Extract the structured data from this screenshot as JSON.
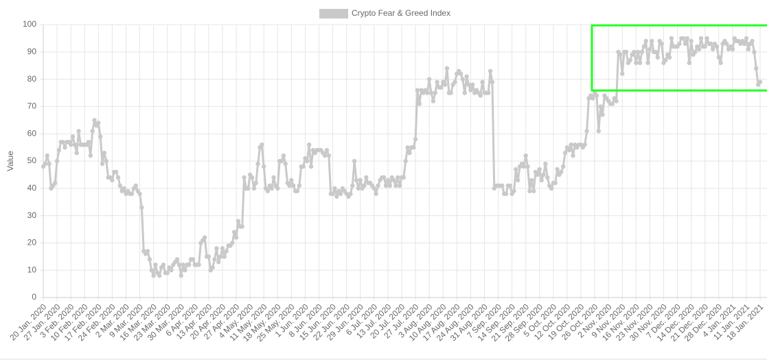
{
  "chart_data": {
    "type": "line",
    "y_label": "Value",
    "ylim": [
      0,
      100
    ],
    "yticks": [
      0,
      10,
      20,
      30,
      40,
      50,
      60,
      70,
      80,
      90,
      100
    ],
    "grid": true,
    "categories": [
      "20 Jan. 2020",
      null,
      null,
      null,
      null,
      null,
      null,
      "27 Jan. 2020",
      null,
      null,
      null,
      null,
      null,
      null,
      "3 Feb. 2020",
      null,
      null,
      null,
      null,
      null,
      null,
      "10 Feb. 2020",
      null,
      null,
      null,
      null,
      null,
      null,
      "17 Feb. 2020",
      null,
      null,
      null,
      null,
      null,
      null,
      "24 Feb. 2020",
      null,
      null,
      null,
      null,
      null,
      null,
      "2 Mar. 2020",
      null,
      null,
      null,
      null,
      null,
      null,
      "9 Mar. 2020",
      null,
      null,
      null,
      null,
      null,
      null,
      "16 Mar. 2020",
      null,
      null,
      null,
      null,
      null,
      null,
      "23 Mar. 2020",
      null,
      null,
      null,
      null,
      null,
      null,
      "30 Mar. 2020",
      null,
      null,
      null,
      null,
      null,
      null,
      "6 Apr. 2020",
      null,
      null,
      null,
      null,
      null,
      null,
      "13 Apr. 2020",
      null,
      null,
      null,
      null,
      null,
      null,
      "20 Apr. 2020",
      null,
      null,
      null,
      null,
      null,
      null,
      "27 Apr. 2020",
      null,
      null,
      null,
      null,
      null,
      null,
      "4 May. 2020",
      null,
      null,
      null,
      null,
      null,
      null,
      "11 May. 2020",
      null,
      null,
      null,
      null,
      null,
      null,
      "18 May. 2020",
      null,
      null,
      null,
      null,
      null,
      null,
      "25 May. 2020",
      null,
      null,
      null,
      null,
      null,
      null,
      "1 Jun. 2020",
      null,
      null,
      null,
      null,
      null,
      null,
      "8 Jun. 2020",
      null,
      null,
      null,
      null,
      null,
      null,
      "15 Jun. 2020",
      null,
      null,
      null,
      null,
      null,
      null,
      "22 Jun. 2020",
      null,
      null,
      null,
      null,
      null,
      null,
      "29 Jun. 2020",
      null,
      null,
      null,
      null,
      null,
      null,
      "6 Jul. 2020",
      null,
      null,
      null,
      null,
      null,
      null,
      "13 Jul. 2020",
      null,
      null,
      null,
      null,
      null,
      null,
      "20 Jul. 2020",
      null,
      null,
      null,
      null,
      null,
      null,
      "27 Jul. 2020",
      null,
      null,
      null,
      null,
      null,
      null,
      "3 Aug. 2020",
      null,
      null,
      null,
      null,
      null,
      null,
      "10 Aug. 2020",
      null,
      null,
      null,
      null,
      null,
      null,
      "17 Aug. 2020",
      null,
      null,
      null,
      null,
      null,
      null,
      "24 Aug. 2020",
      null,
      null,
      null,
      null,
      null,
      null,
      "31 Aug. 2020",
      null,
      null,
      null,
      null,
      null,
      null,
      "7 Sep. 2020",
      null,
      null,
      null,
      null,
      null,
      null,
      "14 Sep. 2020",
      null,
      null,
      null,
      null,
      null,
      null,
      "21 Sep. 2020",
      null,
      null,
      null,
      null,
      null,
      null,
      "28 Sep. 2020",
      null,
      null,
      null,
      null,
      null,
      null,
      "5 Oct. 2020",
      null,
      null,
      null,
      null,
      null,
      null,
      "12 Oct. 2020",
      null,
      null,
      null,
      null,
      null,
      null,
      "19 Oct. 2020",
      null,
      null,
      null,
      null,
      null,
      null,
      "26 Oct. 2020",
      null,
      null,
      null,
      null,
      null,
      null,
      "2 Nov. 2020",
      null,
      null,
      null,
      null,
      null,
      null,
      "9 Nov. 2020",
      null,
      null,
      null,
      null,
      null,
      null,
      "16 Nov. 2020",
      null,
      null,
      null,
      null,
      null,
      null,
      "23 Nov. 2020",
      null,
      null,
      null,
      null,
      null,
      null,
      "30 Nov. 2020",
      null,
      null,
      null,
      null,
      null,
      null,
      "7 Dec. 2020",
      null,
      null,
      null,
      null,
      null,
      null,
      "14 Dec. 2020",
      null,
      null,
      null,
      null,
      null,
      null,
      "21 Dec. 2020",
      null,
      null,
      null,
      null,
      null,
      null,
      "28 Dec. 2020",
      null,
      null,
      null,
      null,
      null,
      null,
      "4 Jan. 2021",
      null,
      null,
      null,
      null,
      null,
      null,
      "11 Jan. 2021",
      null,
      null,
      null,
      null,
      null,
      null,
      "18 Jan. 2021"
    ],
    "series": [
      {
        "name": "Crypto Fear & Greed Index",
        "color": "#c9c9c9",
        "values": [
          48,
          49,
          52,
          49,
          40,
          41,
          42,
          50,
          54,
          57,
          57,
          55,
          57,
          57,
          56,
          59,
          56,
          53,
          61,
          56,
          56,
          56,
          56,
          57,
          52,
          61,
          65,
          63,
          64,
          59,
          49,
          53,
          50,
          44,
          44,
          43,
          46,
          46,
          44,
          41,
          39,
          40,
          38,
          39,
          38,
          38,
          40,
          41,
          39,
          38,
          33,
          17,
          16,
          17,
          14,
          10,
          8,
          12,
          9,
          8,
          11,
          12,
          9,
          9,
          11,
          10,
          12,
          13,
          14,
          12,
          8,
          12,
          10,
          12,
          12,
          14,
          14,
          12,
          12,
          12,
          20,
          21,
          22,
          15,
          15,
          10,
          11,
          14,
          18,
          13,
          15,
          18,
          15,
          17,
          19,
          19,
          20,
          24,
          22,
          28,
          26,
          26,
          44,
          40,
          40,
          45,
          44,
          40,
          42,
          49,
          55,
          56,
          48,
          40,
          39,
          41,
          40,
          44,
          41,
          40,
          50,
          50,
          52,
          49,
          42,
          41,
          43,
          41,
          39,
          39,
          41,
          48,
          48,
          51,
          50,
          56,
          48,
          54,
          53,
          54,
          54,
          54,
          53,
          52,
          54,
          52,
          38,
          38,
          40,
          37,
          39,
          38,
          40,
          39,
          38,
          37,
          38,
          41,
          50,
          43,
          40,
          43,
          40,
          41,
          44,
          42,
          42,
          41,
          40,
          38,
          41,
          43,
          44,
          44,
          41,
          43,
          41,
          44,
          43,
          41,
          44,
          41,
          44,
          44,
          50,
          55,
          53,
          55,
          55,
          58,
          76,
          71,
          76,
          75,
          76,
          75,
          80,
          75,
          72,
          75,
          79,
          77,
          77,
          79,
          78,
          84,
          75,
          75,
          78,
          79,
          82,
          83,
          82,
          80,
          75,
          81,
          78,
          76,
          78,
          75,
          76,
          75,
          74,
          79,
          75,
          75,
          75,
          83,
          79,
          40,
          41,
          41,
          41,
          41,
          38,
          38,
          41,
          41,
          38,
          39,
          47,
          43,
          48,
          49,
          48,
          52,
          48,
          39,
          43,
          39,
          46,
          45,
          47,
          43,
          45,
          49,
          44,
          41,
          40,
          42,
          42,
          47,
          45,
          46,
          48,
          53,
          55,
          54,
          56,
          52,
          56,
          55,
          56,
          56,
          55,
          56,
          61,
          73,
          74,
          73,
          75,
          74,
          61,
          70,
          67,
          74,
          73,
          72,
          71,
          71,
          73,
          72,
          90,
          89,
          82,
          90,
          90,
          86,
          87,
          89,
          90,
          86,
          90,
          86,
          90,
          92,
          94,
          86,
          91,
          94,
          90,
          90,
          88,
          94,
          93,
          86,
          87,
          89,
          88,
          95,
          92,
          92,
          92,
          93,
          95,
          95,
          93,
          95,
          86,
          94,
          89,
          90,
          92,
          91,
          95,
          92,
          92,
          95,
          93,
          93,
          91,
          93,
          92,
          88,
          86,
          93,
          94,
          93,
          91,
          92,
          91,
          95,
          94,
          94,
          93,
          94,
          93,
          95,
          91,
          93,
          94,
          90,
          84,
          78,
          79
        ]
      }
    ]
  }
}
